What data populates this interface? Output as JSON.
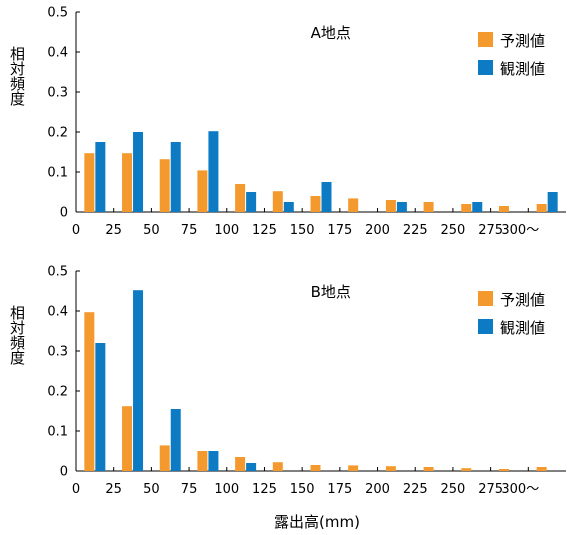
{
  "chart_data": [
    {
      "type": "bar",
      "title": "A地点",
      "ylabel": "相対頻度",
      "xlabel": "",
      "ylim": [
        0,
        0.5
      ],
      "yticks": [
        "0",
        "0.1",
        "0.2",
        "0.3",
        "0.4",
        "0.5"
      ],
      "xticks": [
        "0",
        "25",
        "50",
        "75",
        "100",
        "125",
        "150",
        "175",
        "200",
        "225",
        "250",
        "275",
        "300〜"
      ],
      "categories": [
        "0-25",
        "25-50",
        "50-75",
        "75-100",
        "100-125",
        "125-150",
        "150-175",
        "175-200",
        "200-225",
        "225-250",
        "250-275",
        "275-300",
        "300〜"
      ],
      "grid": false,
      "legend": "top-right",
      "series": [
        {
          "name": "予測値",
          "color": "#f4992e",
          "values": [
            0.147,
            0.147,
            0.132,
            0.104,
            0.07,
            0.052,
            0.04,
            0.034,
            0.03,
            0.025,
            0.02,
            0.015,
            0.02
          ]
        },
        {
          "name": "観測値",
          "color": "#0c7bc4",
          "values": [
            0.175,
            0.2,
            0.175,
            0.202,
            0.05,
            0.025,
            0.075,
            0.0,
            0.025,
            0.0,
            0.025,
            0.0,
            0.05
          ]
        }
      ]
    },
    {
      "type": "bar",
      "title": "B地点",
      "ylabel": "相対頻度",
      "xlabel": "露出高(mm)",
      "ylim": [
        0,
        0.5
      ],
      "yticks": [
        "0",
        "0.1",
        "0.2",
        "0.3",
        "0.4",
        "0.5"
      ],
      "xticks": [
        "0",
        "25",
        "50",
        "75",
        "100",
        "125",
        "150",
        "175",
        "200",
        "225",
        "250",
        "275",
        "300〜"
      ],
      "categories": [
        "0-25",
        "25-50",
        "50-75",
        "75-100",
        "100-125",
        "125-150",
        "150-175",
        "175-200",
        "200-225",
        "225-250",
        "250-275",
        "275-300",
        "300〜"
      ],
      "grid": false,
      "legend": "top-right",
      "series": [
        {
          "name": "予測値",
          "color": "#f4992e",
          "values": [
            0.397,
            0.162,
            0.064,
            0.05,
            0.035,
            0.022,
            0.015,
            0.014,
            0.012,
            0.01,
            0.007,
            0.005,
            0.01
          ]
        },
        {
          "name": "観測値",
          "color": "#0c7bc4",
          "values": [
            0.32,
            0.452,
            0.155,
            0.05,
            0.02,
            0.0,
            0.0,
            0.0,
            0.0,
            0.0,
            0.0,
            0.0,
            0.0
          ]
        }
      ]
    }
  ]
}
